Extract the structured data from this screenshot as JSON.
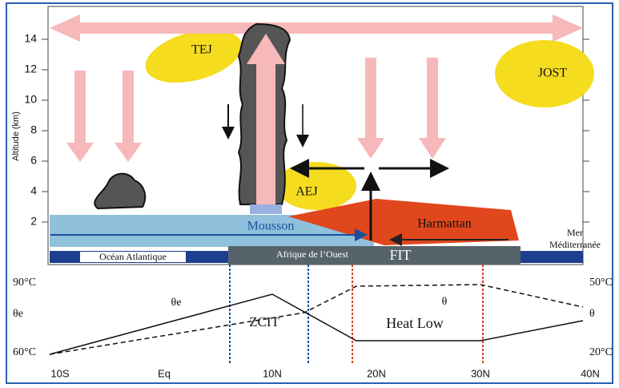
{
  "upper_panel": {
    "axis_label": "Altitude (km)",
    "ticks": [
      2,
      4,
      6,
      8,
      10,
      12,
      14
    ],
    "labels": {
      "tej": "TEJ",
      "jost": "JOST",
      "aej": "AEJ",
      "mousson": "Mousson",
      "harmattan": "Harmattan",
      "mer": [
        "Mer",
        "Méditerranée"
      ],
      "ocean": "Océan Atlantique",
      "afrique": "Afrique de l’Ouest",
      "fit": "FIT"
    }
  },
  "lower_panel": {
    "left_ticks": [
      "90°C",
      "θe",
      "60°C"
    ],
    "right_ticks": [
      "50°C",
      "θ",
      "20°C"
    ],
    "curve_labels": {
      "theta_e": "θe",
      "theta": "θ",
      "zcit": "ZCIT",
      "heat_low": "Heat Low"
    }
  },
  "x_labels": [
    "10S",
    "Eq",
    "10N",
    "20N",
    "30N",
    "40N"
  ]
}
